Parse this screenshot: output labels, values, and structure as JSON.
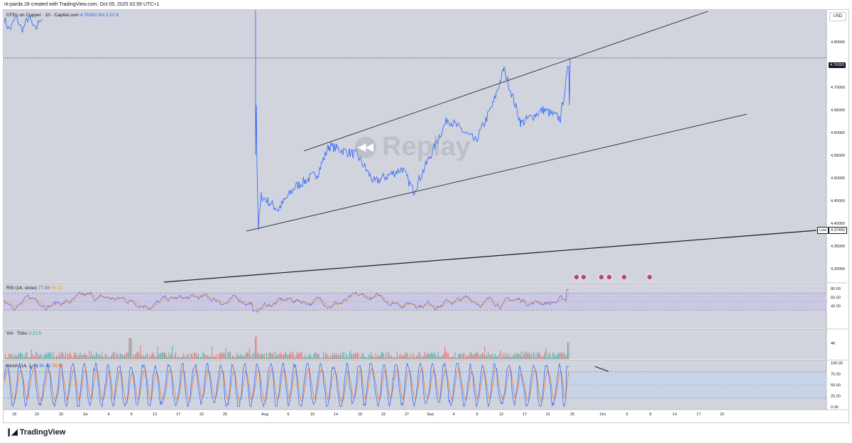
{
  "header": {
    "created_line": "rk-parda 28 created with TradingView.com, Oct 05, 2025 02:56 UTC+1"
  },
  "main_legend": {
    "symbol": "CFDs on Copper · 1h · Capital.com",
    "price": "4.76393",
    "vol": "Vol 3.22 K"
  },
  "watermark": {
    "text": "Replay",
    "icon": "replay-icon"
  },
  "price_axis": {
    "currency_button": "USD",
    "ticks": [
      "4.85000",
      "4.80000",
      "4.75000",
      "4.70000",
      "4.65000",
      "4.60000",
      "4.55000",
      "4.50000",
      "4.45000",
      "4.40000",
      "4.35000",
      "4.30000"
    ],
    "current_price": "4.76393",
    "low_label": "Low",
    "low_price": "4.37450"
  },
  "rsi_panel": {
    "label": "RSI (14, close)",
    "v1": "77.88",
    "v2": "58.32",
    "ticks": [
      "80.00",
      "60.00",
      "40.00"
    ]
  },
  "vol_panel": {
    "label": "Vol · Ticks",
    "value": "3.22 K",
    "ticks": [
      "4K"
    ]
  },
  "stoch_panel": {
    "label": "Stoch (14, 1, 3)",
    "v1": "91.61",
    "v2": "59.61",
    "ticks": [
      "100.00",
      "75.00",
      "50.00",
      "25.00",
      "0.00"
    ]
  },
  "time_axis": {
    "ticks": [
      "18",
      "22",
      "26",
      "Jul",
      "4",
      "9",
      "13",
      "17",
      "22",
      "25",
      "Aug",
      "6",
      "10",
      "14",
      "19",
      "22",
      "27",
      "Sep",
      "4",
      "9",
      "12",
      "17",
      "21",
      "25",
      "Oct",
      "5",
      "9",
      "14",
      "17",
      "22"
    ]
  },
  "footer": {
    "brand": "TradingView",
    "icon": "tradingview-logo-icon"
  },
  "colors": {
    "price_line": "#2962ff",
    "rsi_line": "#7e57c2",
    "stoch_k": "#2962ff",
    "stoch_d": "#ff6d00",
    "vol_up": "#26a69a",
    "vol_down": "#ef5350",
    "bg_chart": "#d1d4dc",
    "rsi_band": "#c9c4e6",
    "stoch_band": "#c5d3e8"
  },
  "chart_data": {
    "type": "line",
    "title": "CFDs on Copper · 1h · Capital.com",
    "x": [
      "Aug 1",
      "Aug 1",
      "Aug 2",
      "Aug 5",
      "Aug 8",
      "Aug 12",
      "Aug 14",
      "Aug 19",
      "Aug 22",
      "Aug 27",
      "Aug 29",
      "Sep 4",
      "Sep 9",
      "Sep 12",
      "Sep 14",
      "Sep 17",
      "Sep 21",
      "Sep 24",
      "Sep 25"
    ],
    "series": [
      {
        "values": [
          4.52,
          4.39,
          4.46,
          4.43,
          4.48,
          4.51,
          4.57,
          4.55,
          4.49,
          4.52,
          4.47,
          4.63,
          4.58,
          4.66,
          4.74,
          4.62,
          4.65,
          4.63,
          4.76
        ]
      }
    ],
    "ylim": [
      4.27,
      4.87
    ],
    "current_price": 4.76393,
    "low_price": 4.3745
  }
}
